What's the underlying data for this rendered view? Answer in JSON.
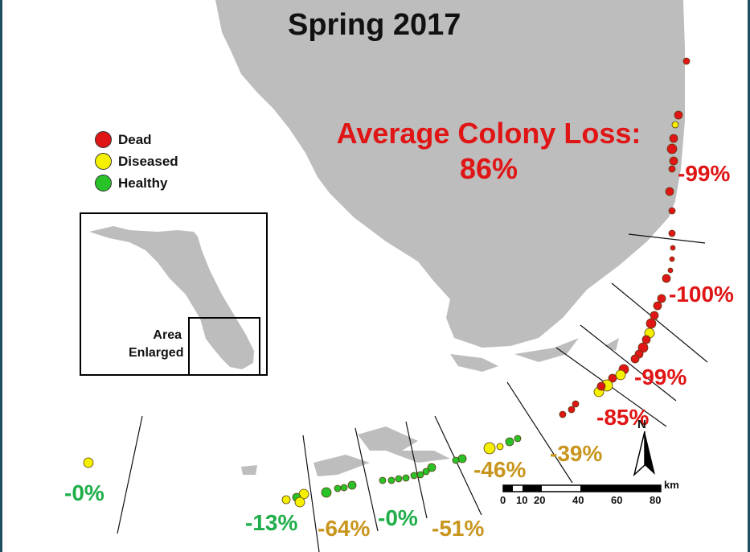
{
  "title": "Spring 2017",
  "average_loss": {
    "line1": "Average Colony Loss:",
    "line2": "86%"
  },
  "legend": [
    {
      "label": "Dead",
      "color": "#e01515"
    },
    {
      "label": "Diseased",
      "color": "#f5f000"
    },
    {
      "label": "Healthy",
      "color": "#29c329"
    }
  ],
  "inset": {
    "line1": "Area",
    "line2": "Enlarged"
  },
  "zones": {
    "z1": "-99%",
    "z2": "-100%",
    "z3": "-99%",
    "z4": "-85%",
    "z5": "-39%",
    "z6": "-46%",
    "z7": "-51%",
    "z8": "-0%",
    "z9": "-64%",
    "z10": "-13%",
    "z11": "-0%"
  },
  "scale": {
    "ticks": [
      "0",
      "10",
      "20",
      "40",
      "60",
      "80"
    ],
    "unit": "km"
  },
  "north_label": "N",
  "colors": {
    "land": "#bdbdbd",
    "dead": "#e01515",
    "diseased": "#f5f000",
    "healthy": "#29c329"
  }
}
